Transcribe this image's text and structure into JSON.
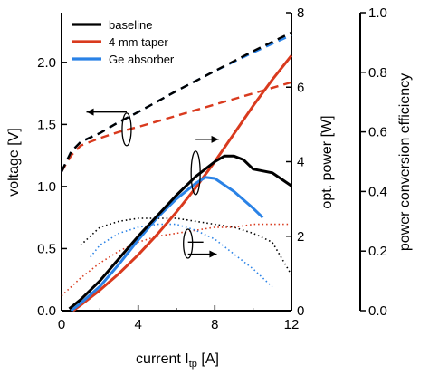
{
  "chart_data": {
    "type": "line",
    "xlabel": "current I",
    "xlabel_sub": "tp",
    "xlabel_unit": " [A]",
    "ylabel_left": "voltage [V]",
    "ylabel_mid": "opt. power [W]",
    "ylabel_right": "power conversion efficiency",
    "xlim": [
      0,
      12
    ],
    "ylim_left": [
      0,
      2.4
    ],
    "ylim_mid": [
      0,
      8
    ],
    "ylim_right": [
      0,
      1.0
    ],
    "x_ticks": [
      "0",
      "4",
      "8",
      "12"
    ],
    "y_left_ticks": [
      "0.0",
      "0.5",
      "1.0",
      "1.5",
      "2.0"
    ],
    "y_mid_ticks": [
      "0",
      "2",
      "4",
      "6",
      "8"
    ],
    "y_right_ticks": [
      "0.0",
      "0.2",
      "0.4",
      "0.6",
      "0.8",
      "1.0"
    ],
    "legend_position": "top-left",
    "grid": false,
    "series": [
      {
        "name": "baseline",
        "color": "#000000",
        "voltage": {
          "x": [
            0,
            0.5,
            1,
            2,
            3,
            4,
            6,
            8,
            10,
            12
          ],
          "y": [
            1.12,
            1.28,
            1.36,
            1.43,
            1.52,
            1.6,
            1.77,
            1.93,
            2.09,
            2.24
          ]
        },
        "power": {
          "x": [
            0.4,
            1,
            2,
            3,
            4,
            5,
            6,
            7,
            8,
            8.5,
            9,
            9.5,
            10,
            11,
            12
          ],
          "y": [
            0.05,
            0.3,
            0.8,
            1.4,
            2.0,
            2.55,
            3.1,
            3.6,
            4.0,
            4.15,
            4.15,
            4.05,
            3.8,
            3.7,
            3.35
          ]
        },
        "efficiency": {
          "x": [
            1,
            2,
            3,
            4,
            5,
            6,
            7,
            8,
            9,
            10,
            11,
            12
          ],
          "y": [
            0.22,
            0.28,
            0.3,
            0.31,
            0.31,
            0.31,
            0.3,
            0.29,
            0.28,
            0.26,
            0.23,
            0.12
          ]
        }
      },
      {
        "name": "4 mm taper",
        "color": "#d93a1e",
        "voltage": {
          "x": [
            0,
            0.5,
            1,
            2,
            3,
            4,
            6,
            8,
            10,
            12
          ],
          "y": [
            1.12,
            1.25,
            1.33,
            1.39,
            1.44,
            1.48,
            1.57,
            1.66,
            1.75,
            1.84
          ]
        },
        "power": {
          "x": [
            0.6,
            1,
            2,
            3,
            4,
            5,
            6,
            7,
            8,
            9,
            10,
            11,
            12
          ],
          "y": [
            0.0,
            0.15,
            0.55,
            1.0,
            1.5,
            2.05,
            2.65,
            3.3,
            4.0,
            4.75,
            5.5,
            6.2,
            6.85
          ]
        },
        "efficiency": {
          "x": [
            0,
            1,
            2,
            3,
            4,
            5,
            6,
            7,
            8,
            9,
            10,
            11,
            12
          ],
          "y": [
            0.05,
            0.11,
            0.16,
            0.2,
            0.23,
            0.25,
            0.26,
            0.27,
            0.28,
            0.28,
            0.29,
            0.29,
            0.29
          ]
        }
      },
      {
        "name": "Ge absorber",
        "color": "#2a82e6",
        "voltage": {
          "x": [
            0,
            0.5,
            1,
            2,
            3,
            4,
            6,
            8,
            10,
            12
          ],
          "y": [
            1.12,
            1.28,
            1.36,
            1.43,
            1.52,
            1.6,
            1.77,
            1.93,
            2.08,
            2.22
          ]
        },
        "power": {
          "x": [
            0.5,
            1,
            2,
            3,
            4,
            5,
            6,
            7,
            7.5,
            8,
            9,
            10,
            10.5
          ],
          "y": [
            0.0,
            0.2,
            0.65,
            1.25,
            1.9,
            2.5,
            3.0,
            3.42,
            3.58,
            3.55,
            3.2,
            2.75,
            2.5
          ]
        },
        "efficiency": {
          "x": [
            1.5,
            2,
            3,
            4,
            5,
            6,
            7,
            8,
            9,
            10,
            11
          ],
          "y": [
            0.18,
            0.22,
            0.26,
            0.28,
            0.29,
            0.29,
            0.27,
            0.24,
            0.19,
            0.14,
            0.08
          ]
        }
      }
    ]
  }
}
